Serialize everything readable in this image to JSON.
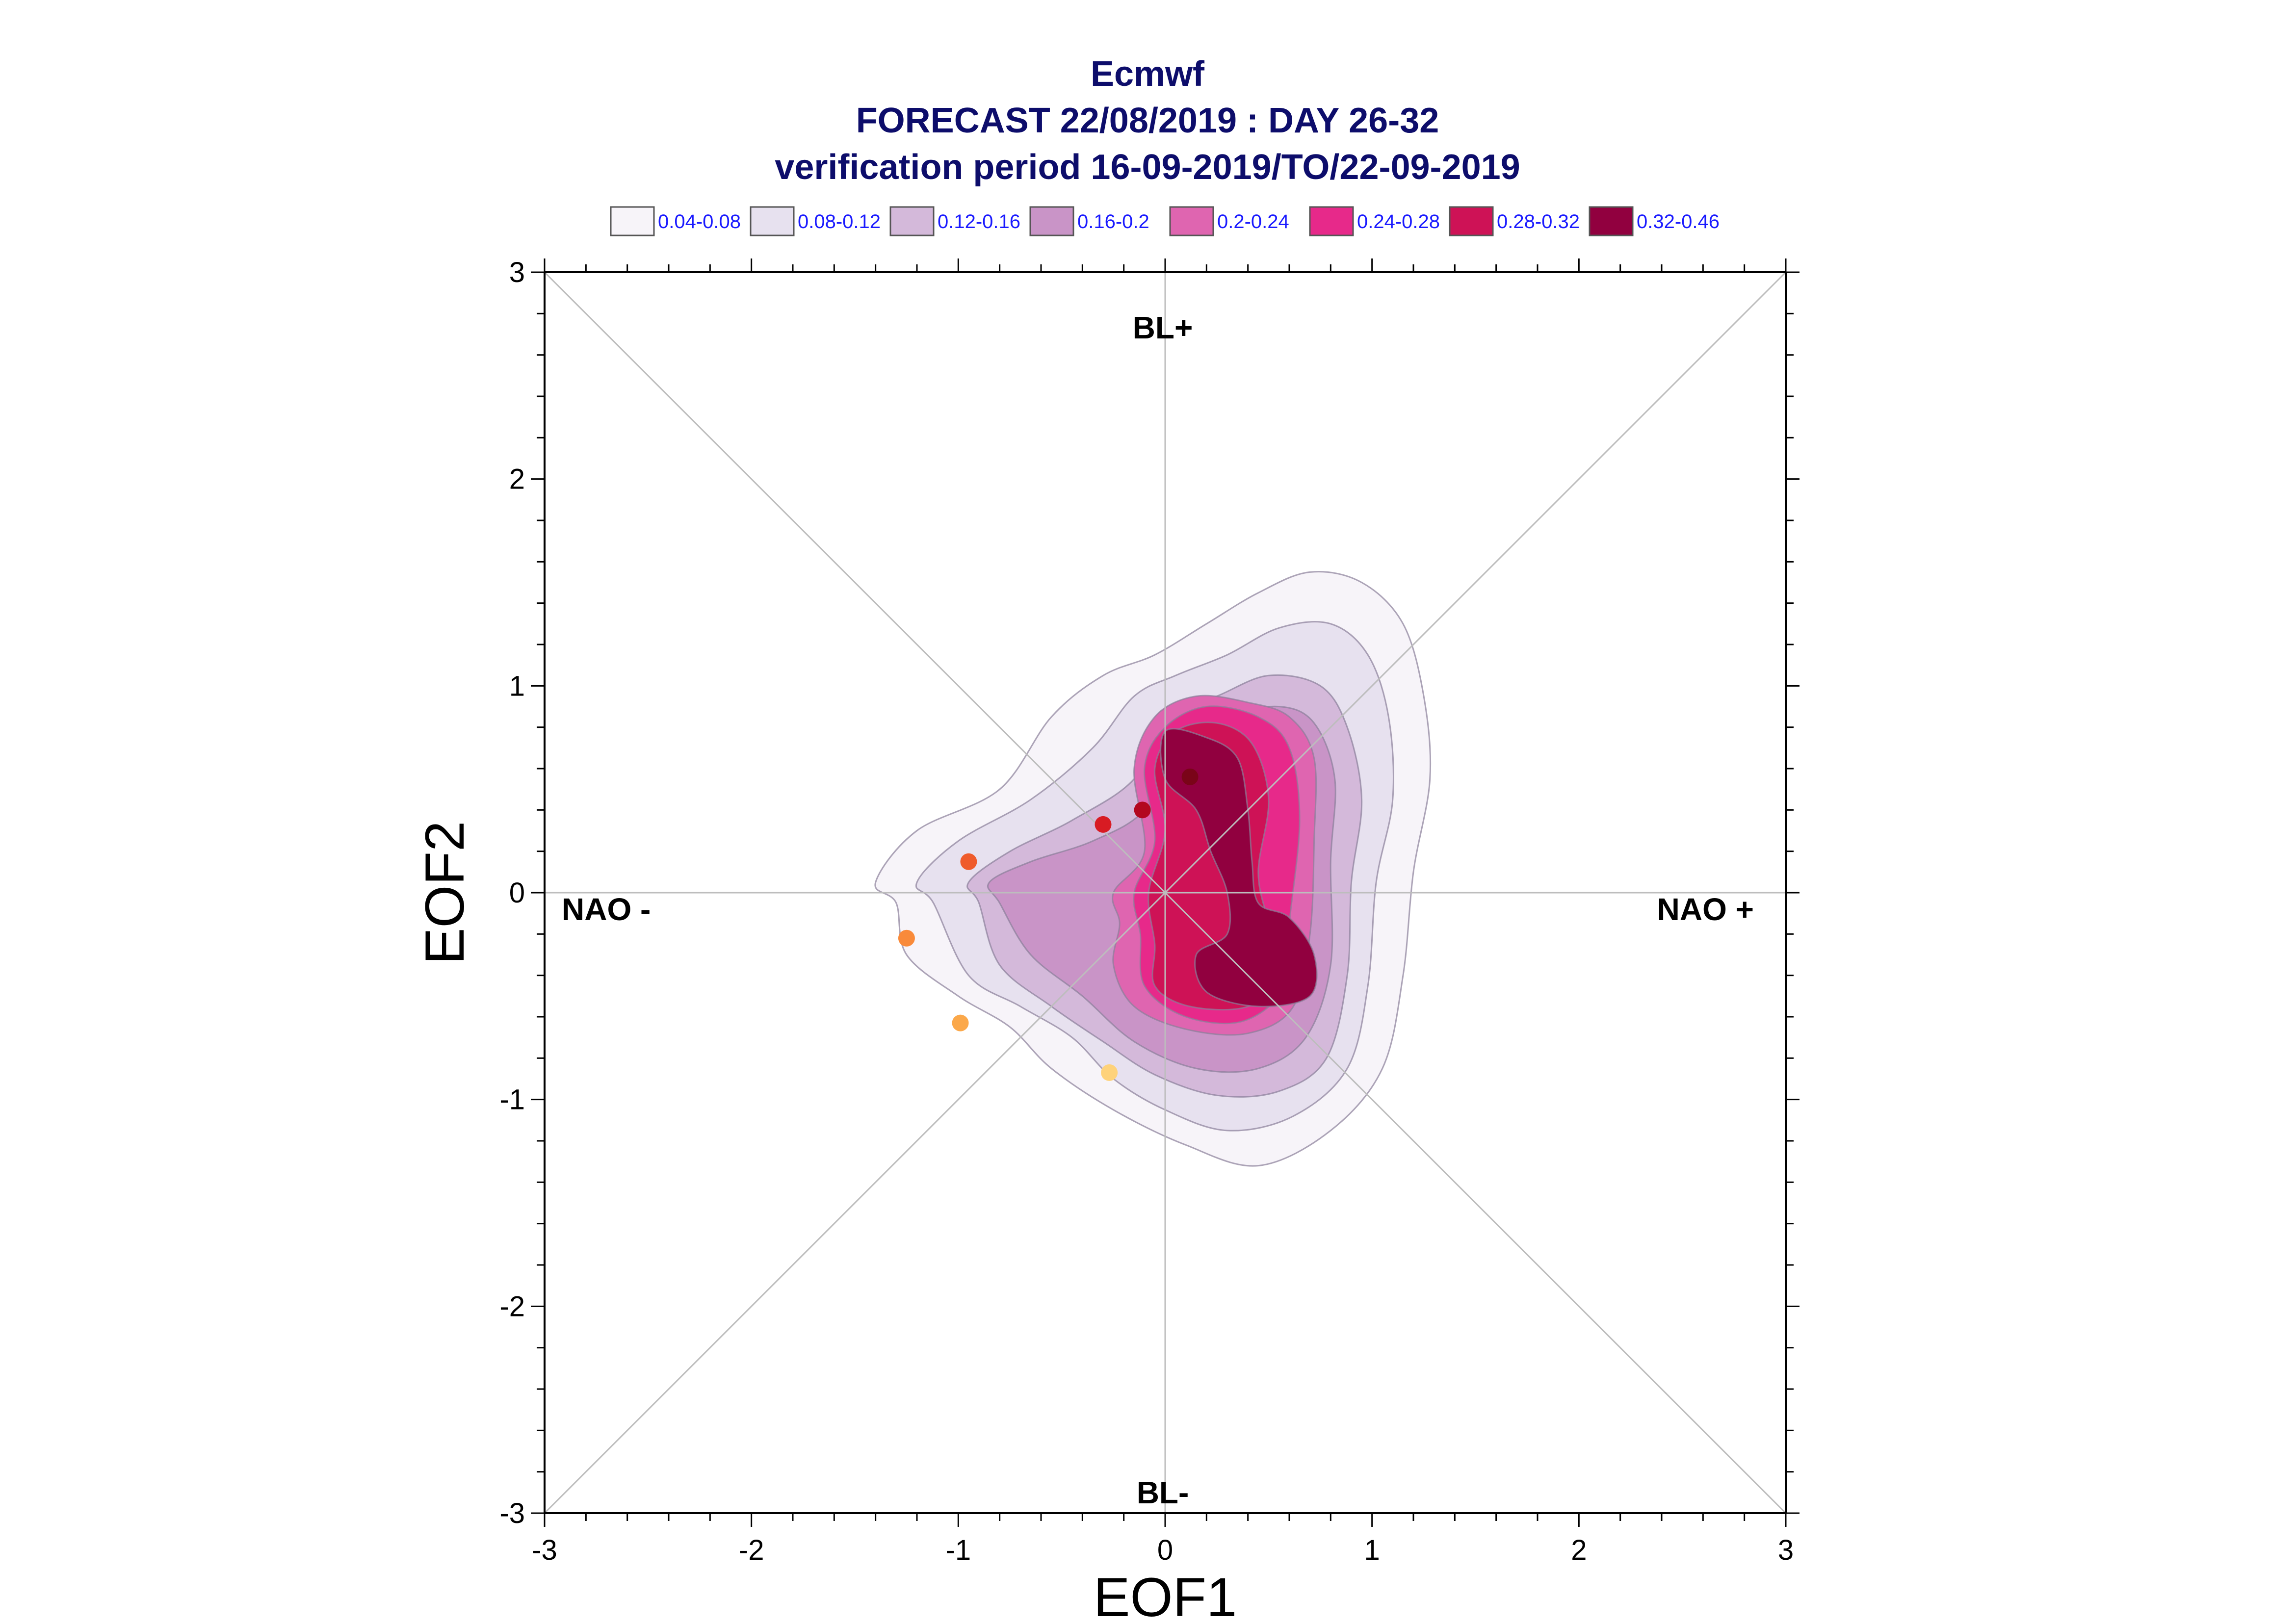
{
  "title": {
    "line1": "Ecmwf",
    "line2": "FORECAST 22/08/2019 : DAY 26-32",
    "line3": "verification period 16-09-2019/TO/22-09-2019"
  },
  "legend": [
    {
      "label": "0.04-0.08",
      "color": "#f7f4f9"
    },
    {
      "label": "0.08-0.12",
      "color": "#e7e1ef"
    },
    {
      "label": "0.12-0.16",
      "color": "#d4b9da"
    },
    {
      "label": "0.16-0.2",
      "color": "#c994c7"
    },
    {
      "label": "0.2-0.24",
      "color": "#df65b0"
    },
    {
      "label": "0.24-0.28",
      "color": "#e7298a"
    },
    {
      "label": "0.28-0.32",
      "color": "#ce1256"
    },
    {
      "label": "0.32-0.46",
      "color": "#91003f"
    }
  ],
  "regimes": {
    "top": "BL+",
    "bottom": "BL-",
    "left": "NAO -",
    "right": "NAO +"
  },
  "chart_data": {
    "type": "contour-scatter",
    "xlabel": "EOF1",
    "ylabel": "EOF2",
    "xlim": [
      -3,
      3
    ],
    "ylim": [
      -3,
      3
    ],
    "xticks": [
      -3,
      -2,
      -1,
      0,
      1,
      2,
      3
    ],
    "yticks": [
      -3,
      -2,
      -1,
      0,
      1,
      2,
      3
    ],
    "grid": "crosshair and diagonals",
    "density_levels": [
      {
        "range": "0.04-0.08",
        "outline": [
          [
            -1.3,
            -0.05
          ],
          [
            -1.4,
            0.05
          ],
          [
            -1.2,
            0.3
          ],
          [
            -0.8,
            0.5
          ],
          [
            -0.55,
            0.85
          ],
          [
            -0.3,
            1.05
          ],
          [
            -0.05,
            1.15
          ],
          [
            0.2,
            1.3
          ],
          [
            0.45,
            1.45
          ],
          [
            0.7,
            1.55
          ],
          [
            0.95,
            1.5
          ],
          [
            1.15,
            1.3
          ],
          [
            1.25,
            0.95
          ],
          [
            1.28,
            0.55
          ],
          [
            1.2,
            0.1
          ],
          [
            1.15,
            -0.4
          ],
          [
            1.05,
            -0.85
          ],
          [
            0.8,
            -1.15
          ],
          [
            0.45,
            -1.32
          ],
          [
            0.1,
            -1.22
          ],
          [
            -0.25,
            -1.05
          ],
          [
            -0.55,
            -0.85
          ],
          [
            -0.75,
            -0.65
          ],
          [
            -1.0,
            -0.5
          ],
          [
            -1.25,
            -0.3
          ]
        ]
      },
      {
        "range": "0.08-0.12",
        "outline": [
          [
            -1.12,
            -0.05
          ],
          [
            -1.2,
            0.05
          ],
          [
            -1.0,
            0.25
          ],
          [
            -0.65,
            0.45
          ],
          [
            -0.35,
            0.7
          ],
          [
            -0.15,
            0.95
          ],
          [
            0.05,
            1.05
          ],
          [
            0.3,
            1.15
          ],
          [
            0.55,
            1.28
          ],
          [
            0.8,
            1.3
          ],
          [
            0.98,
            1.15
          ],
          [
            1.08,
            0.85
          ],
          [
            1.1,
            0.45
          ],
          [
            1.02,
            0.05
          ],
          [
            0.98,
            -0.45
          ],
          [
            0.88,
            -0.85
          ],
          [
            0.62,
            -1.08
          ],
          [
            0.3,
            -1.15
          ],
          [
            0.0,
            -1.05
          ],
          [
            -0.25,
            -0.9
          ],
          [
            -0.45,
            -0.7
          ],
          [
            -0.7,
            -0.55
          ],
          [
            -0.95,
            -0.4
          ]
        ]
      },
      {
        "range": "0.12-0.16",
        "outline": [
          [
            -0.9,
            -0.05
          ],
          [
            -0.95,
            0.05
          ],
          [
            -0.75,
            0.2
          ],
          [
            -0.45,
            0.35
          ],
          [
            -0.15,
            0.55
          ],
          [
            0.0,
            0.85
          ],
          [
            0.25,
            0.95
          ],
          [
            0.5,
            1.05
          ],
          [
            0.75,
            1.0
          ],
          [
            0.88,
            0.8
          ],
          [
            0.95,
            0.45
          ],
          [
            0.9,
            0.05
          ],
          [
            0.88,
            -0.4
          ],
          [
            0.78,
            -0.8
          ],
          [
            0.55,
            -0.96
          ],
          [
            0.25,
            -0.98
          ],
          [
            -0.05,
            -0.88
          ],
          [
            -0.3,
            -0.72
          ],
          [
            -0.55,
            -0.55
          ],
          [
            -0.8,
            -0.35
          ]
        ]
      },
      {
        "range": "0.16-0.2",
        "outline": [
          [
            -0.8,
            -0.05
          ],
          [
            -0.85,
            0.05
          ],
          [
            -0.65,
            0.15
          ],
          [
            -0.35,
            0.25
          ],
          [
            -0.1,
            0.4
          ],
          [
            0.05,
            0.7
          ],
          [
            0.3,
            0.85
          ],
          [
            0.55,
            0.9
          ],
          [
            0.72,
            0.82
          ],
          [
            0.82,
            0.55
          ],
          [
            0.8,
            0.15
          ],
          [
            0.8,
            -0.35
          ],
          [
            0.68,
            -0.7
          ],
          [
            0.45,
            -0.85
          ],
          [
            0.15,
            -0.85
          ],
          [
            -0.15,
            -0.72
          ],
          [
            -0.4,
            -0.5
          ],
          [
            -0.65,
            -0.3
          ]
        ]
      },
      {
        "range": "0.2-0.24",
        "outline": [
          [
            -0.22,
            -0.15
          ],
          [
            -0.25,
            0.0
          ],
          [
            -0.1,
            0.2
          ],
          [
            -0.15,
            0.6
          ],
          [
            -0.05,
            0.85
          ],
          [
            0.15,
            0.95
          ],
          [
            0.4,
            0.92
          ],
          [
            0.6,
            0.85
          ],
          [
            0.72,
            0.65
          ],
          [
            0.72,
            0.25
          ],
          [
            0.7,
            -0.2
          ],
          [
            0.62,
            -0.55
          ],
          [
            0.4,
            -0.68
          ],
          [
            0.1,
            -0.66
          ],
          [
            -0.15,
            -0.55
          ],
          [
            -0.25,
            -0.35
          ]
        ]
      },
      {
        "range": "0.24-0.28",
        "outline": [
          [
            -0.12,
            -0.2
          ],
          [
            -0.15,
            0.0
          ],
          [
            -0.05,
            0.25
          ],
          [
            -0.1,
            0.6
          ],
          [
            0.0,
            0.8
          ],
          [
            0.2,
            0.9
          ],
          [
            0.45,
            0.85
          ],
          [
            0.6,
            0.7
          ],
          [
            0.65,
            0.35
          ],
          [
            0.6,
            -0.15
          ],
          [
            0.58,
            -0.45
          ],
          [
            0.38,
            -0.62
          ],
          [
            0.1,
            -0.6
          ],
          [
            -0.1,
            -0.45
          ]
        ]
      },
      {
        "range": "0.28-0.32",
        "outline": [
          [
            -0.05,
            -0.25
          ],
          [
            -0.08,
            0.0
          ],
          [
            0.0,
            0.3
          ],
          [
            -0.05,
            0.6
          ],
          [
            0.05,
            0.78
          ],
          [
            0.25,
            0.82
          ],
          [
            0.42,
            0.72
          ],
          [
            0.5,
            0.45
          ],
          [
            0.45,
            0.1
          ],
          [
            0.5,
            -0.15
          ],
          [
            0.55,
            -0.4
          ],
          [
            0.4,
            -0.55
          ],
          [
            0.12,
            -0.55
          ],
          [
            -0.05,
            -0.45
          ]
        ]
      },
      {
        "range": "0.32-0.46",
        "outline": [
          [
            0.0,
            0.78
          ],
          [
            0.2,
            0.75
          ],
          [
            0.35,
            0.65
          ],
          [
            0.4,
            0.4
          ],
          [
            0.42,
            0.15
          ],
          [
            0.45,
            -0.05
          ],
          [
            0.6,
            -0.12
          ],
          [
            0.72,
            -0.3
          ],
          [
            0.7,
            -0.5
          ],
          [
            0.45,
            -0.55
          ],
          [
            0.2,
            -0.48
          ],
          [
            0.15,
            -0.3
          ],
          [
            0.3,
            -0.2
          ],
          [
            0.3,
            0.0
          ],
          [
            0.22,
            0.2
          ],
          [
            0.15,
            0.4
          ],
          [
            0.0,
            0.55
          ]
        ]
      }
    ],
    "points": [
      {
        "x": 0.12,
        "y": 0.56,
        "color": "#7a0418"
      },
      {
        "x": -0.11,
        "y": 0.4,
        "color": "#b3071f"
      },
      {
        "x": -0.3,
        "y": 0.33,
        "color": "#d81b23"
      },
      {
        "x": -0.95,
        "y": 0.15,
        "color": "#ef5b2b"
      },
      {
        "x": -1.25,
        "y": -0.22,
        "color": "#f98a3a"
      },
      {
        "x": -0.99,
        "y": -0.63,
        "color": "#fba84a"
      },
      {
        "x": -0.27,
        "y": -0.87,
        "color": "#fed27a"
      }
    ]
  }
}
